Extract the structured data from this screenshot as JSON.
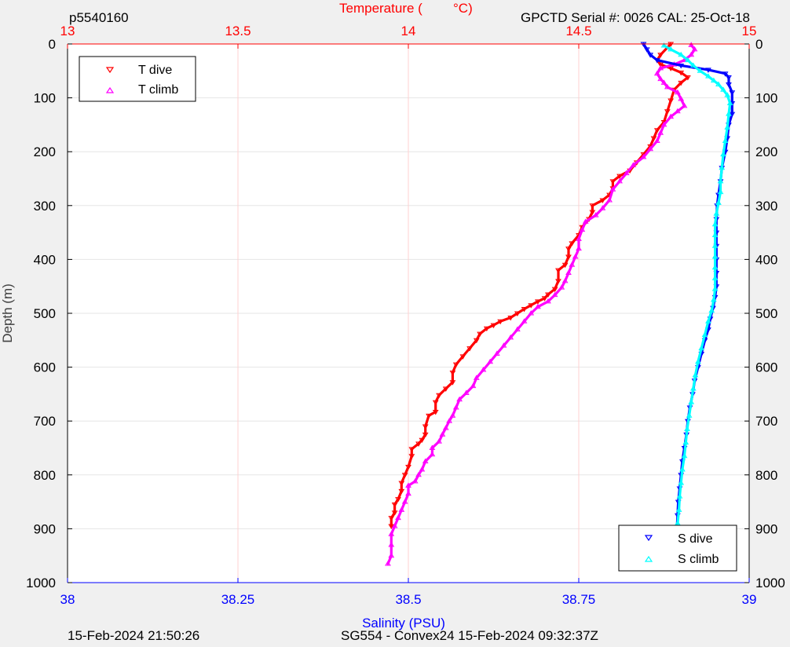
{
  "header": {
    "profile_id": "p5540160",
    "serial_info": "GPCTD Serial #: 0026 CAL: 25-Oct-18"
  },
  "footer": {
    "plot_time": "15-Feb-2024 21:50:26",
    "mission_info": "SG554 - Convex24 15-Feb-2024 09:32:37Z"
  },
  "colors": {
    "temperature_axis": "#ff0000",
    "salinity_axis": "#0000ff",
    "t_dive": "#ff0000",
    "t_climb": "#ff00ff",
    "s_dive": "#0000ff",
    "s_climb": "#00ffff",
    "temp_grid": "#ffd0d0",
    "depth_grid": "#e6e6e6",
    "background": "#f0f0f0",
    "plot_area": "#ffffff"
  },
  "chart_data": {
    "type": "line",
    "title": "",
    "y_axis": {
      "label": "Depth (m)",
      "range": [
        0,
        1000
      ],
      "reversed": true,
      "ticks": [
        0,
        100,
        200,
        300,
        400,
        500,
        600,
        700,
        800,
        900,
        1000
      ],
      "tick_labels": [
        "0",
        "100",
        "200",
        "300",
        "400",
        "500",
        "600",
        "700",
        "800",
        "900",
        "1000"
      ],
      "grid": true
    },
    "x_top_axis": {
      "label_prefix": "Temperature (",
      "label_unit": "°C)",
      "range": [
        13,
        15
      ],
      "ticks": [
        13,
        13.5,
        14,
        14.5,
        15
      ],
      "tick_labels": [
        "13",
        "13.5",
        "14",
        "14.5",
        "15"
      ],
      "grid": true
    },
    "x_bottom_axis": {
      "label": "Salinity (PSU)",
      "range": [
        38,
        39
      ],
      "ticks": [
        38,
        38.25,
        38.5,
        38.75,
        39
      ],
      "tick_labels": [
        "38",
        "38.25",
        "38.5",
        "38.75",
        "39"
      ]
    },
    "legends": [
      {
        "position": "top-left",
        "entries": [
          {
            "label": "T dive",
            "series": "t_dive",
            "marker": "triangle-down"
          },
          {
            "label": "T climb",
            "series": "t_climb",
            "marker": "triangle-up"
          }
        ]
      },
      {
        "position": "bottom-right",
        "entries": [
          {
            "label": "S dive",
            "series": "s_dive",
            "marker": "triangle-down"
          },
          {
            "label": "S climb",
            "series": "s_climb",
            "marker": "triangle-up"
          }
        ]
      }
    ],
    "series": [
      {
        "key": "t_dive",
        "name": "T dive",
        "axis": "temperature",
        "marker": "triangle-down",
        "points": [
          [
            14.77,
            0
          ],
          [
            14.74,
            20
          ],
          [
            14.73,
            30
          ],
          [
            14.74,
            38
          ],
          [
            14.77,
            45
          ],
          [
            14.8,
            53
          ],
          [
            14.82,
            62
          ],
          [
            14.8,
            72
          ],
          [
            14.78,
            85
          ],
          [
            14.77,
            105
          ],
          [
            14.76,
            125
          ],
          [
            14.75,
            145
          ],
          [
            14.73,
            160
          ],
          [
            14.72,
            175
          ],
          [
            14.71,
            190
          ],
          [
            14.69,
            205
          ],
          [
            14.67,
            220
          ],
          [
            14.65,
            235
          ],
          [
            14.62,
            245
          ],
          [
            14.6,
            255
          ],
          [
            14.6,
            268
          ],
          [
            14.59,
            280
          ],
          [
            14.57,
            290
          ],
          [
            14.54,
            300
          ],
          [
            14.54,
            312
          ],
          [
            14.53,
            325
          ],
          [
            14.51,
            340
          ],
          [
            14.5,
            355
          ],
          [
            14.48,
            370
          ],
          [
            14.47,
            380
          ],
          [
            14.47,
            395
          ],
          [
            14.46,
            410
          ],
          [
            14.44,
            420
          ],
          [
            14.44,
            440
          ],
          [
            14.43,
            455
          ],
          [
            14.41,
            465
          ],
          [
            14.4,
            472
          ],
          [
            14.38,
            478
          ],
          [
            14.36,
            485
          ],
          [
            14.34,
            492
          ],
          [
            14.32,
            500
          ],
          [
            14.3,
            508
          ],
          [
            14.27,
            515
          ],
          [
            14.25,
            522
          ],
          [
            14.23,
            528
          ],
          [
            14.21,
            538
          ],
          [
            14.2,
            550
          ],
          [
            14.18,
            565
          ],
          [
            14.16,
            580
          ],
          [
            14.14,
            595
          ],
          [
            14.13,
            610
          ],
          [
            14.13,
            628
          ],
          [
            14.11,
            640
          ],
          [
            14.09,
            652
          ],
          [
            14.08,
            665
          ],
          [
            14.08,
            683
          ],
          [
            14.06,
            690
          ],
          [
            14.05,
            710
          ],
          [
            14.05,
            725
          ],
          [
            14.04,
            735
          ],
          [
            14.03,
            742
          ],
          [
            14.01,
            752
          ],
          [
            14.01,
            765
          ],
          [
            14.0,
            785
          ],
          [
            13.99,
            800
          ],
          [
            13.98,
            815
          ],
          [
            13.98,
            830
          ],
          [
            13.97,
            845
          ],
          [
            13.96,
            855
          ],
          [
            13.96,
            870
          ],
          [
            13.95,
            880
          ],
          [
            13.95,
            895
          ]
        ]
      },
      {
        "key": "t_climb",
        "name": "T climb",
        "axis": "temperature",
        "marker": "triangle-up",
        "points": [
          [
            13.94,
            965
          ],
          [
            13.95,
            950
          ],
          [
            13.95,
            930
          ],
          [
            13.95,
            910
          ],
          [
            13.96,
            895
          ],
          [
            13.97,
            880
          ],
          [
            13.98,
            865
          ],
          [
            13.99,
            850
          ],
          [
            14.0,
            835
          ],
          [
            14.0,
            820
          ],
          [
            14.02,
            812
          ],
          [
            14.03,
            800
          ],
          [
            14.04,
            790
          ],
          [
            14.05,
            775
          ],
          [
            14.07,
            762
          ],
          [
            14.07,
            750
          ],
          [
            14.09,
            738
          ],
          [
            14.1,
            725
          ],
          [
            14.11,
            713
          ],
          [
            14.12,
            700
          ],
          [
            14.13,
            690
          ],
          [
            14.14,
            675
          ],
          [
            14.15,
            660
          ],
          [
            14.17,
            648
          ],
          [
            14.19,
            635
          ],
          [
            14.2,
            620
          ],
          [
            14.22,
            605
          ],
          [
            14.24,
            590
          ],
          [
            14.26,
            575
          ],
          [
            14.28,
            560
          ],
          [
            14.3,
            545
          ],
          [
            14.32,
            530
          ],
          [
            14.34,
            515
          ],
          [
            14.36,
            500
          ],
          [
            14.38,
            488
          ],
          [
            14.41,
            478
          ],
          [
            14.43,
            466
          ],
          [
            14.45,
            452
          ],
          [
            14.46,
            440
          ],
          [
            14.47,
            425
          ],
          [
            14.48,
            410
          ],
          [
            14.49,
            395
          ],
          [
            14.5,
            380
          ],
          [
            14.5,
            362
          ],
          [
            14.51,
            345
          ],
          [
            14.52,
            330
          ],
          [
            14.55,
            318
          ],
          [
            14.57,
            305
          ],
          [
            14.59,
            290
          ],
          [
            14.6,
            270
          ],
          [
            14.62,
            255
          ],
          [
            14.64,
            240
          ],
          [
            14.66,
            225
          ],
          [
            14.69,
            210
          ],
          [
            14.71,
            195
          ],
          [
            14.73,
            180
          ],
          [
            14.74,
            165
          ],
          [
            14.75,
            150
          ],
          [
            14.77,
            135
          ],
          [
            14.79,
            125
          ],
          [
            14.81,
            115
          ],
          [
            14.8,
            102
          ],
          [
            14.79,
            90
          ],
          [
            14.76,
            80
          ],
          [
            14.75,
            72
          ],
          [
            14.74,
            65
          ],
          [
            14.73,
            55
          ],
          [
            14.74,
            45
          ],
          [
            14.78,
            38
          ],
          [
            14.81,
            30
          ],
          [
            14.83,
            20
          ],
          [
            14.84,
            10
          ],
          [
            14.83,
            2
          ]
        ]
      },
      {
        "key": "s_dive",
        "name": "S dive",
        "axis": "salinity",
        "marker": "triangle-down",
        "points": [
          [
            38.845,
            0
          ],
          [
            38.85,
            10
          ],
          [
            38.855,
            20
          ],
          [
            38.865,
            30
          ],
          [
            38.9,
            40
          ],
          [
            38.94,
            48
          ],
          [
            38.965,
            55
          ],
          [
            38.97,
            62
          ],
          [
            38.97,
            75
          ],
          [
            38.975,
            90
          ],
          [
            38.975,
            110
          ],
          [
            38.975,
            130
          ],
          [
            38.97,
            150
          ],
          [
            38.968,
            175
          ],
          [
            38.965,
            200
          ],
          [
            38.96,
            230
          ],
          [
            38.958,
            255
          ],
          [
            38.955,
            280
          ],
          [
            38.953,
            300
          ],
          [
            38.952,
            325
          ],
          [
            38.952,
            350
          ],
          [
            38.952,
            375
          ],
          [
            38.952,
            400
          ],
          [
            38.952,
            425
          ],
          [
            38.952,
            450
          ],
          [
            38.95,
            470
          ],
          [
            38.947,
            490
          ],
          [
            38.943,
            510
          ],
          [
            38.94,
            530
          ],
          [
            38.935,
            550
          ],
          [
            38.93,
            575
          ],
          [
            38.925,
            600
          ],
          [
            38.92,
            625
          ],
          [
            38.917,
            650
          ],
          [
            38.913,
            675
          ],
          [
            38.91,
            700
          ],
          [
            38.908,
            725
          ],
          [
            38.905,
            750
          ],
          [
            38.902,
            775
          ],
          [
            38.9,
            800
          ],
          [
            38.898,
            825
          ],
          [
            38.896,
            850
          ],
          [
            38.895,
            875
          ],
          [
            38.894,
            900
          ]
        ]
      },
      {
        "key": "s_climb",
        "name": "S climb",
        "axis": "salinity",
        "marker": "triangle-up",
        "points": [
          [
            38.893,
            965
          ],
          [
            38.893,
            940
          ],
          [
            38.894,
            915
          ],
          [
            38.895,
            890
          ],
          [
            38.897,
            865
          ],
          [
            38.898,
            840
          ],
          [
            38.9,
            815
          ],
          [
            38.902,
            790
          ],
          [
            38.905,
            765
          ],
          [
            38.907,
            740
          ],
          [
            38.909,
            715
          ],
          [
            38.912,
            690
          ],
          [
            38.915,
            665
          ],
          [
            38.918,
            640
          ],
          [
            38.921,
            615
          ],
          [
            38.925,
            590
          ],
          [
            38.93,
            565
          ],
          [
            38.935,
            540
          ],
          [
            38.94,
            515
          ],
          [
            38.945,
            495
          ],
          [
            38.948,
            475
          ],
          [
            38.95,
            455
          ],
          [
            38.95,
            435
          ],
          [
            38.95,
            415
          ],
          [
            38.95,
            395
          ],
          [
            38.95,
            375
          ],
          [
            38.95,
            355
          ],
          [
            38.95,
            335
          ],
          [
            38.952,
            315
          ],
          [
            38.955,
            295
          ],
          [
            38.958,
            275
          ],
          [
            38.958,
            255
          ],
          [
            38.96,
            230
          ],
          [
            38.962,
            205
          ],
          [
            38.965,
            180
          ],
          [
            38.968,
            155
          ],
          [
            38.97,
            130
          ],
          [
            38.972,
            110
          ],
          [
            38.968,
            95
          ],
          [
            38.962,
            85
          ],
          [
            38.955,
            75
          ],
          [
            38.948,
            68
          ],
          [
            38.94,
            60
          ],
          [
            38.928,
            50
          ],
          [
            38.918,
            40
          ],
          [
            38.91,
            30
          ],
          [
            38.9,
            20
          ],
          [
            38.885,
            10
          ],
          [
            38.875,
            3
          ]
        ]
      }
    ]
  }
}
